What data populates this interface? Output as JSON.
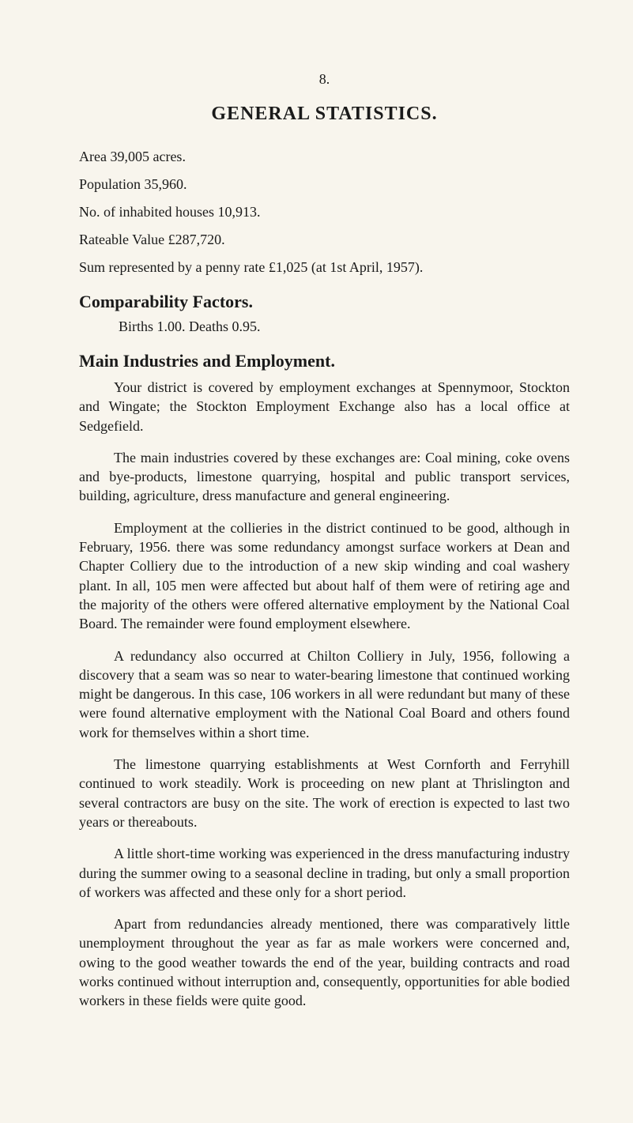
{
  "page_number": "8.",
  "title": "GENERAL STATISTICS.",
  "stats": {
    "area": "Area 39,005 acres.",
    "population": "Population 35,960.",
    "houses": "No. of inhabited houses 10,913.",
    "rateable": "Rateable Value £287,720.",
    "penny_rate": "Sum represented by a penny rate £1,025 (at 1st April, 1957)."
  },
  "sections": {
    "comparability": {
      "heading": "Comparability Factors.",
      "line": "Births 1.00.    Deaths 0.95."
    },
    "main_industries": {
      "heading": "Main Industries and Employment.",
      "paragraphs": [
        "Your district is covered by employment exchanges at Spennymoor, Stockton and Wingate; the Stockton Employment Exchange also has a local office at Sedgefield.",
        "The main industries covered by these exchanges are: Coal mining, coke ovens and bye-products, limestone quarrying, hospital and public transport services, building, agriculture, dress manufacture and general engineering.",
        "Employment at the collieries in the district continued to be good, although in February, 1956. there was some redundancy amongst surface workers at Dean and Chapter Colliery due to the introduction of a new skip winding and coal washery plant. In all, 105 men were affected but about half of them were of retiring age and the majority of the others were offered alternative employment by the National Coal Board. The remainder were found employment elsewhere.",
        "A redundancy also occurred at Chilton Colliery in July, 1956, following a discovery that a seam was so near to water-bearing limestone that continued working might be dangerous. In this case, 106 workers in all were redundant but many of these were found alternative employment with the National Coal Board and others found work for themselves within a short time.",
        "The limestone quarrying establishments at West Cornforth and Ferryhill continued to work steadily. Work is proceeding on new plant at Thrislington and several contractors are busy on the site. The work of erection is expected to last two years or thereabouts.",
        "A little short-time working was experienced in the dress manufacturing industry during the summer owing to a seasonal decline in trading, but only a small proportion of workers was affected and these only for a short period.",
        "Apart from redundancies already mentioned, there was comparatively little unemployment throughout the year as far as male workers were concerned and, owing to the good weather towards the end of the year, building contracts and road works continued without interruption and, consequently, opportunities for able bodied workers in these fields were quite good."
      ]
    }
  },
  "colors": {
    "background": "#f8f5ed",
    "text": "#1a1a1a"
  },
  "typography": {
    "body_fontsize": 18,
    "title_fontsize": 24,
    "heading_fontsize": 22,
    "font_family": "Georgia, Times New Roman, serif"
  }
}
